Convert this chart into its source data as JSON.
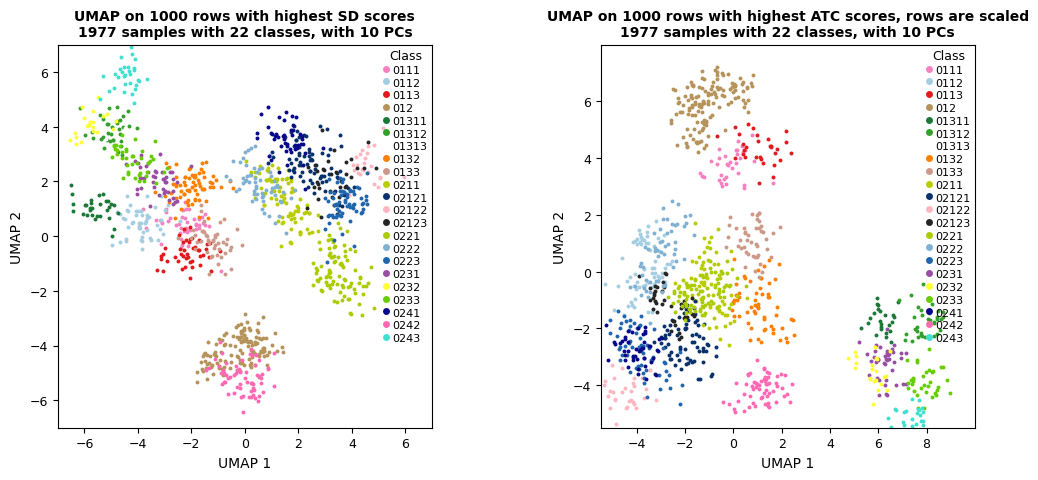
{
  "title1": "UMAP on 1000 rows with highest SD scores\n1977 samples with 22 classes, with 10 PCs",
  "title2": "UMAP on 1000 rows with highest ATC scores, rows are scaled\n1977 samples with 22 classes, with 10 PCs",
  "xlabel": "UMAP 1",
  "ylabel": "UMAP 2",
  "classes": [
    "0111",
    "0112",
    "0113",
    "012",
    "01311",
    "01312",
    "01313",
    "0132",
    "0133",
    "0211",
    "02121",
    "02122",
    "02123",
    "0221",
    "0222",
    "0223",
    "0231",
    "0232",
    "0233",
    "0241",
    "0242",
    "0243"
  ],
  "colors": [
    "#F781BF",
    "#A6CEE3",
    "#E31A1C",
    "#B5935A",
    "#1B7837",
    "#33A02C",
    "#FFFFFF",
    "#FF7F00",
    "#CC9988",
    "#B8CC00",
    "#08306B",
    "#FFB6C1",
    "#252525",
    "#AACC00",
    "#80B1D3",
    "#2166AC",
    "#984EA3",
    "#FFFF33",
    "#66CD00",
    "#08088A",
    "#FF69B4",
    "#40E0D0"
  ],
  "plot1_xlim": [
    -7,
    7
  ],
  "plot1_ylim": [
    -7,
    7
  ],
  "plot1_xticks": [
    -6,
    -4,
    -2,
    0,
    2,
    4,
    6
  ],
  "plot1_yticks": [
    -6,
    -4,
    -2,
    0,
    2,
    4,
    6
  ],
  "plot2_xlim": [
    -5.5,
    10
  ],
  "plot2_ylim": [
    -5.5,
    8
  ],
  "plot2_xticks": [
    -4,
    -2,
    0,
    2,
    4,
    6,
    8
  ],
  "plot2_yticks": [
    -4,
    -2,
    0,
    2,
    4,
    6
  ],
  "point_size": 8,
  "alpha": 1.0,
  "legend_title": "Class",
  "legend_fontsize": 8,
  "title_fontsize": 10,
  "axis_fontsize": 10,
  "tick_fontsize": 9,
  "background_color": "#FFFFFF",
  "plot1_clusters": {
    "0111": [
      [
        [
          -2.8,
          0.4
        ],
        [
          -2.2,
          0.3
        ],
        [
          -1.8,
          0.35
        ]
      ],
      45
    ],
    "0112": [
      [
        [
          -4.2,
          0.6
        ],
        [
          -3.5,
          0.5
        ]
      ],
      50
    ],
    "0113": [
      [
        [
          -1.8,
          -0.6
        ],
        [
          -2.5,
          -0.9
        ]
      ],
      45
    ],
    "012": [
      [
        [
          0.0,
          -3.8
        ],
        [
          -1.0,
          -4.5
        ],
        [
          0.5,
          -4.2
        ]
      ],
      130
    ],
    "01311": [
      [
        [
          -5.5,
          0.8
        ],
        [
          -5.8,
          1.2
        ]
      ],
      30
    ],
    "01312": [
      [
        [
          -4.8,
          3.8
        ],
        [
          -5.0,
          4.0
        ]
      ],
      35
    ],
    "01313": [
      [
        [
          -5.3,
          3.4
        ]
      ],
      5
    ],
    "0132": [
      [
        [
          -2.5,
          1.5
        ],
        [
          -2.0,
          2.0
        ],
        [
          -1.5,
          1.8
        ]
      ],
      70
    ],
    "0133": [
      [
        [
          -1.5,
          0.2
        ],
        [
          -1.0,
          -0.3
        ]
      ],
      45
    ],
    "0211": [
      [
        [
          1.5,
          1.5
        ],
        [
          2.0,
          0.5
        ],
        [
          1.0,
          2.0
        ]
      ],
      85
    ],
    "02121": [
      [
        [
          2.0,
          2.8
        ],
        [
          3.0,
          2.0
        ],
        [
          2.5,
          3.0
        ]
      ],
      75
    ],
    "02122": [
      [
        [
          4.5,
          2.8
        ],
        [
          4.8,
          2.2
        ]
      ],
      25
    ],
    "02123": [
      [
        [
          3.0,
          1.5
        ],
        [
          3.5,
          2.5
        ]
      ],
      35
    ],
    "0221": [
      [
        [
          3.0,
          -1.5
        ],
        [
          3.5,
          -0.5
        ],
        [
          4.0,
          -2.0
        ]
      ],
      85
    ],
    "0222": [
      [
        [
          0.5,
          1.8
        ],
        [
          0.0,
          2.5
        ],
        [
          1.0,
          1.2
        ]
      ],
      60
    ],
    "0223": [
      [
        [
          3.5,
          0.8
        ],
        [
          4.0,
          1.5
        ]
      ],
      65
    ],
    "0231": [
      [
        [
          -3.5,
          2.2
        ],
        [
          -3.0,
          1.8
        ]
      ],
      45
    ],
    "0232": [
      [
        [
          -5.5,
          4.2
        ],
        [
          -5.8,
          3.8
        ]
      ],
      20
    ],
    "0233": [
      [
        [
          -4.5,
          3.0
        ],
        [
          -4.0,
          2.5
        ]
      ],
      40
    ],
    "0241": [
      [
        [
          1.5,
          3.5
        ],
        [
          1.0,
          4.0
        ],
        [
          2.0,
          3.2
        ]
      ],
      50
    ],
    "0242": [
      [
        [
          -0.5,
          -4.8
        ],
        [
          -0.2,
          -5.5
        ],
        [
          0.5,
          -5.2
        ]
      ],
      65
    ],
    "0243": [
      [
        [
          -4.5,
          5.8
        ]
      ],
      30
    ]
  },
  "plot2_clusters": {
    "0111": [
      [
        [
          -0.5,
          3.5
        ],
        [
          0.2,
          4.0
        ]
      ],
      35
    ],
    "0112": [
      [
        [
          -3.8,
          0.8
        ],
        [
          -3.0,
          0.0
        ],
        [
          -4.0,
          -1.0
        ]
      ],
      65
    ],
    "0113": [
      [
        [
          0.5,
          4.5
        ],
        [
          1.5,
          4.0
        ]
      ],
      30
    ],
    "012": [
      [
        [
          -2.0,
          6.0
        ],
        [
          -1.0,
          6.5
        ],
        [
          -1.5,
          5.0
        ],
        [
          0.0,
          6.5
        ]
      ],
      135
    ],
    "01311": [
      [
        [
          6.0,
          -1.5
        ],
        [
          6.2,
          -2.0
        ]
      ],
      25
    ],
    "01312": [
      [
        [
          7.8,
          -2.0
        ],
        [
          8.2,
          -1.5
        ]
      ],
      35
    ],
    "01313": [
      [
        [
          7.5,
          -4.2
        ]
      ],
      5
    ],
    "0132": [
      [
        [
          0.5,
          -1.2
        ],
        [
          1.0,
          -0.5
        ],
        [
          1.5,
          -2.0
        ]
      ],
      60
    ],
    "0133": [
      [
        [
          0.5,
          1.5
        ],
        [
          1.0,
          0.8
        ]
      ],
      45
    ],
    "0211": [
      [
        [
          -1.5,
          -0.5
        ],
        [
          -0.5,
          -1.5
        ],
        [
          -1.0,
          0.5
        ]
      ],
      75
    ],
    "02121": [
      [
        [
          -2.5,
          -2.5
        ],
        [
          -1.5,
          -3.0
        ],
        [
          -2.0,
          -1.8
        ]
      ],
      70
    ],
    "02122": [
      [
        [
          -4.2,
          -3.8
        ],
        [
          -4.5,
          -4.5
        ]
      ],
      30
    ],
    "02123": [
      [
        [
          -2.0,
          -1.5
        ],
        [
          -3.0,
          -0.8
        ]
      ],
      40
    ],
    "0221": [
      [
        [
          -1.5,
          -1.2
        ],
        [
          -0.5,
          -0.5
        ],
        [
          -2.0,
          -0.8
        ]
      ],
      80
    ],
    "0222": [
      [
        [
          -3.0,
          0.8
        ],
        [
          -2.5,
          1.5
        ],
        [
          -3.5,
          -0.5
        ]
      ],
      55
    ],
    "0223": [
      [
        [
          -3.8,
          -2.8
        ],
        [
          -3.0,
          -3.5
        ],
        [
          -4.5,
          -2.0
        ]
      ],
      60
    ],
    "0231": [
      [
        [
          6.2,
          -2.8
        ],
        [
          6.5,
          -3.5
        ]
      ],
      40
    ],
    "0232": [
      [
        [
          6.0,
          -3.8
        ],
        [
          5.5,
          -3.2
        ]
      ],
      22
    ],
    "0233": [
      [
        [
          8.0,
          -4.2
        ],
        [
          7.8,
          -3.5
        ]
      ],
      35
    ],
    "0241": [
      [
        [
          -4.2,
          -2.5
        ],
        [
          -3.8,
          -3.0
        ]
      ],
      50
    ],
    "0242": [
      [
        [
          1.0,
          -3.8
        ],
        [
          0.5,
          -4.5
        ],
        [
          1.5,
          -4.2
        ]
      ],
      60
    ],
    "0243": [
      [
        [
          7.5,
          -5.2
        ]
      ],
      25
    ]
  }
}
